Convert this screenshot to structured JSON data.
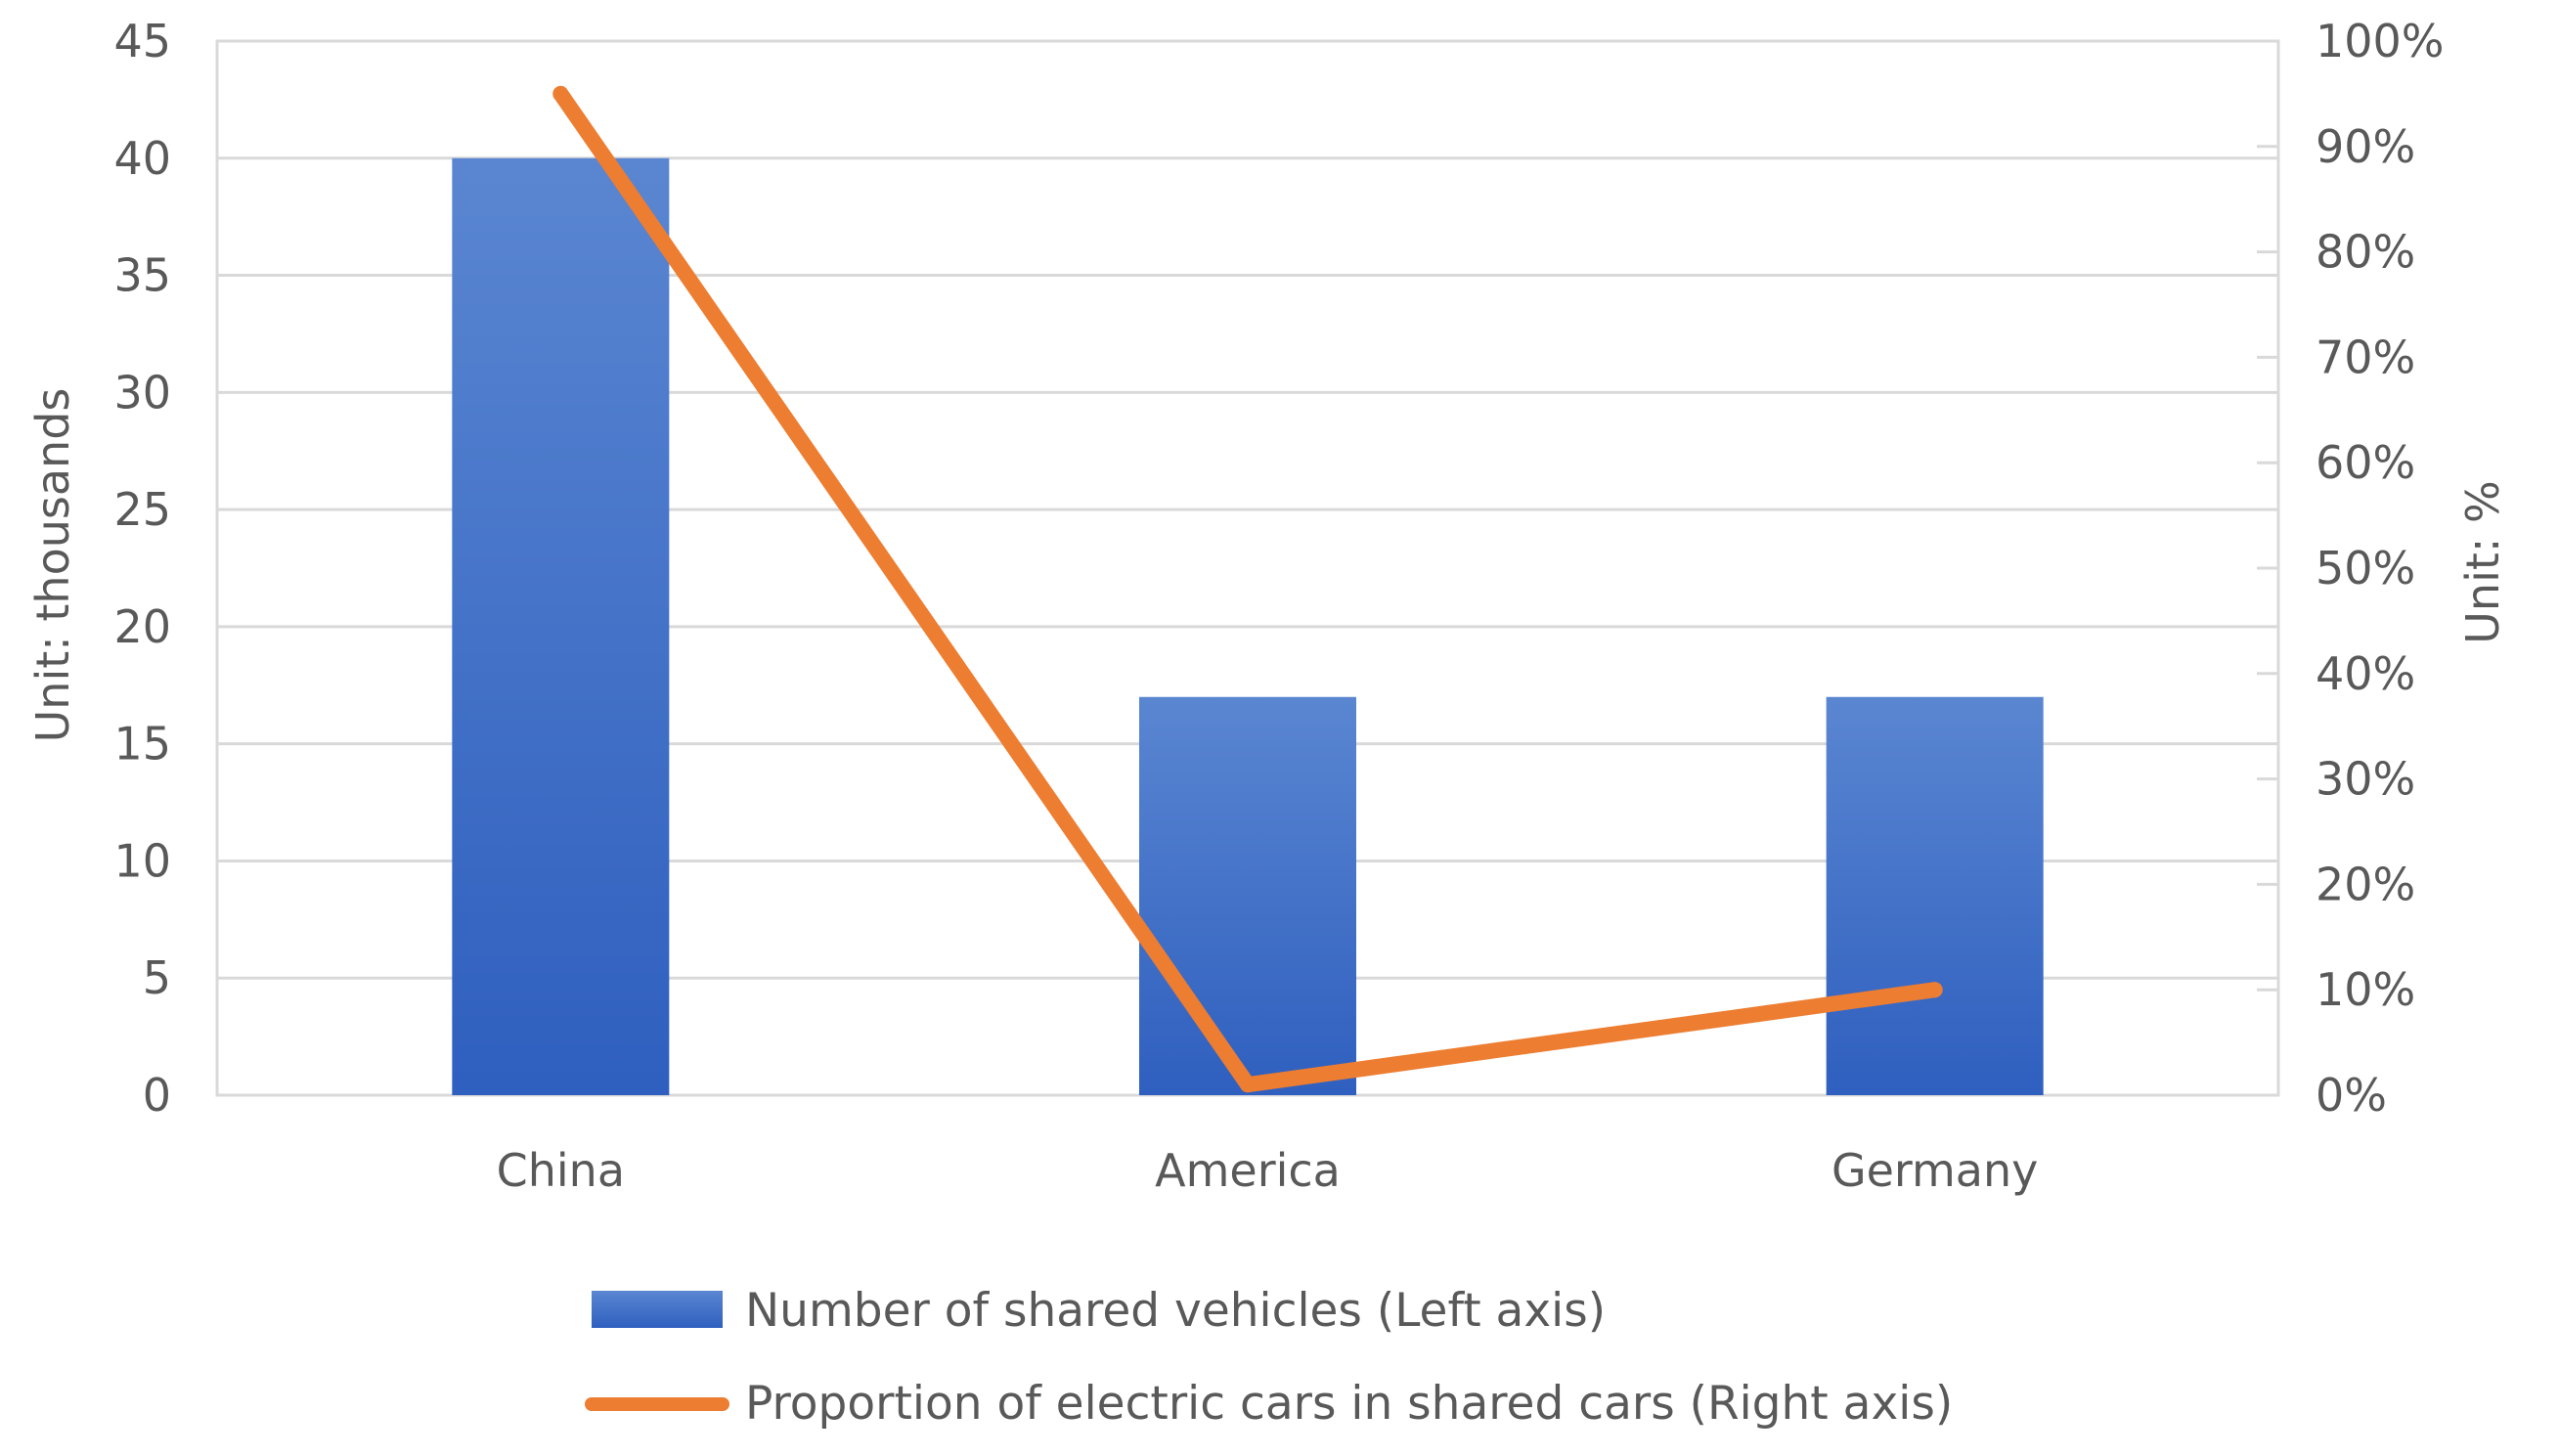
{
  "chart_data": {
    "type": "bar",
    "title": "",
    "categories": [
      "China",
      "America",
      "Germany"
    ],
    "series": [
      {
        "name": "Number of shared vehicles (Left axis)",
        "type": "bar",
        "axis": "left",
        "color": "#4472C4",
        "values": [
          40,
          17,
          17
        ]
      },
      {
        "name": "Proportion of electric cars in shared cars (Right axis)",
        "type": "line",
        "axis": "right",
        "color": "#ED7D31",
        "values": [
          95,
          1,
          10
        ]
      }
    ],
    "left_axis": {
      "label": "Unit: thousands",
      "min": 0,
      "max": 45,
      "ticks": [
        0,
        5,
        10,
        15,
        20,
        25,
        30,
        35,
        40,
        45
      ]
    },
    "right_axis": {
      "label": "Unit: %",
      "min": 0,
      "max": 100,
      "ticks": [
        "0%",
        "10%",
        "20%",
        "30%",
        "40%",
        "50%",
        "60%",
        "70%",
        "80%",
        "90%",
        "100%"
      ]
    },
    "grid": true,
    "legend_position": "bottom"
  }
}
